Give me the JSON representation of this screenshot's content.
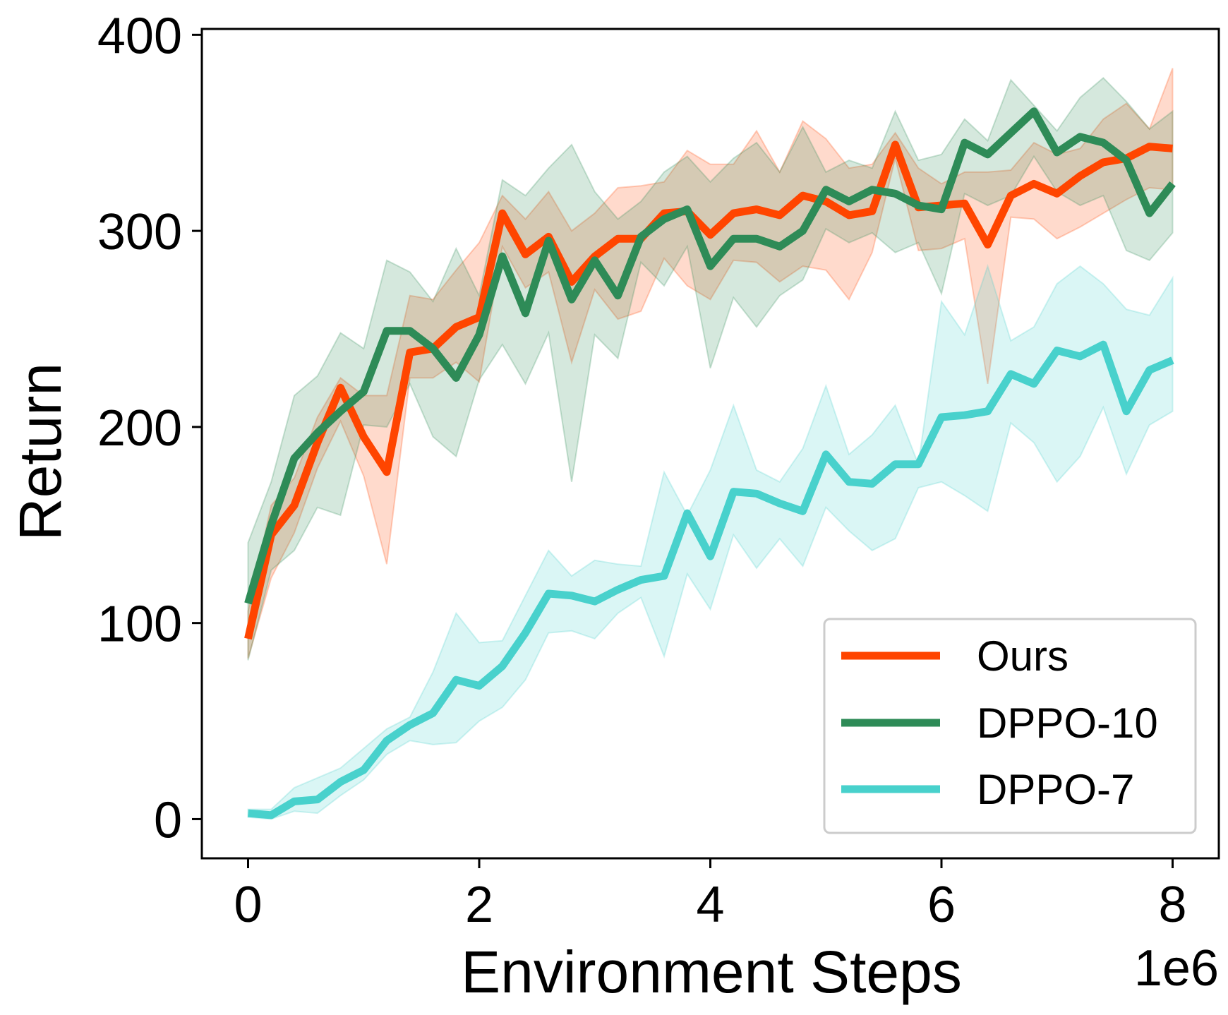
{
  "chart_data": {
    "type": "line",
    "title": "",
    "xlabel": "Environment Steps",
    "ylabel": "Return",
    "x_offset_label": "1e6",
    "xlim": [
      -0.4,
      8.4
    ],
    "ylim": [
      -20,
      403
    ],
    "xticks": [
      0,
      2,
      4,
      6,
      8
    ],
    "xtick_labels": [
      "0",
      "2",
      "4",
      "6",
      "8"
    ],
    "yticks": [
      0,
      100,
      200,
      300,
      400
    ],
    "ytick_labels": [
      "0",
      "100",
      "200",
      "300",
      "400"
    ],
    "grid": false,
    "legend_position": "lower-right",
    "x": [
      0,
      0.2,
      0.4,
      0.6,
      0.8,
      1.0,
      1.2,
      1.4,
      1.6,
      1.8,
      2.0,
      2.2,
      2.4,
      2.6,
      2.8,
      3.0,
      3.2,
      3.4,
      3.6,
      3.8,
      4.0,
      4.2,
      4.4,
      4.6,
      4.8,
      5.0,
      5.2,
      5.4,
      5.6,
      5.8,
      6.0,
      6.2,
      6.4,
      6.6,
      6.8,
      7.0,
      7.2,
      7.4,
      7.6,
      7.8,
      8.0
    ],
    "series": [
      {
        "name": "Ours",
        "color": "#FF4500",
        "values": [
          92,
          145,
          160,
          192,
          220,
          195,
          177,
          238,
          240,
          251,
          256,
          309,
          288,
          297,
          274,
          287,
          296,
          296,
          309,
          310,
          298,
          309,
          311,
          308,
          318,
          315,
          308,
          310,
          344,
          312,
          313,
          314,
          293,
          318,
          324,
          319,
          328,
          335,
          337,
          343,
          342
        ],
        "upper": [
          106,
          160,
          174,
          205,
          225,
          216,
          216,
          267,
          265,
          280,
          294,
          318,
          306,
          320,
          300,
          309,
          322,
          323,
          325,
          341,
          334,
          334,
          351,
          330,
          356,
          347,
          332,
          334,
          350,
          332,
          324,
          330,
          330,
          331,
          345,
          339,
          342,
          357,
          365,
          352,
          383
        ],
        "lower": [
          82,
          123,
          146,
          179,
          203,
          175,
          130,
          225,
          225,
          233,
          223,
          292,
          271,
          279,
          233,
          270,
          255,
          259,
          286,
          272,
          265,
          285,
          284,
          274,
          282,
          280,
          265,
          289,
          337,
          290,
          291,
          296,
          222,
          307,
          306,
          296,
          302,
          309,
          316,
          322,
          321
        ]
      },
      {
        "name": "DPPO-10",
        "color": "#2E8B57",
        "values": [
          110,
          150,
          184,
          197,
          208,
          218,
          249,
          249,
          240,
          225,
          247,
          287,
          258,
          295,
          265,
          285,
          267,
          297,
          306,
          311,
          282,
          296,
          296,
          292,
          300,
          321,
          315,
          321,
          319,
          313,
          311,
          345,
          339,
          350,
          361,
          340,
          348,
          345,
          336,
          309,
          324
        ],
        "upper": [
          141,
          172,
          216,
          226,
          248,
          240,
          285,
          279,
          264,
          291,
          267,
          326,
          318,
          332,
          344,
          320,
          306,
          315,
          330,
          338,
          325,
          337,
          345,
          330,
          353,
          330,
          336,
          332,
          361,
          336,
          339,
          357,
          346,
          377,
          364,
          351,
          368,
          378,
          366,
          352,
          361
        ],
        "lower": [
          81,
          127,
          137,
          159,
          155,
          201,
          200,
          222,
          195,
          185,
          224,
          242,
          222,
          248,
          172,
          247,
          235,
          284,
          272,
          292,
          230,
          266,
          251,
          267,
          275,
          301,
          294,
          299,
          289,
          294,
          268,
          319,
          313,
          318,
          338,
          320,
          313,
          318,
          290,
          285,
          299
        ]
      },
      {
        "name": "DPPO-7",
        "color": "#48D1CC",
        "values": [
          3,
          2,
          9,
          10,
          19,
          25,
          40,
          48,
          54,
          71,
          68,
          78,
          95,
          115,
          114,
          111,
          117,
          122,
          124,
          156,
          134,
          167,
          166,
          161,
          157,
          186,
          172,
          171,
          181,
          181,
          205,
          206,
          208,
          227,
          222,
          239,
          236,
          242,
          208,
          229,
          234
        ],
        "upper": [
          5,
          5,
          16,
          21,
          26,
          36,
          46,
          52,
          75,
          105,
          90,
          91,
          114,
          137,
          124,
          132,
          130,
          129,
          177,
          155,
          178,
          211,
          178,
          172,
          189,
          221,
          186,
          196,
          211,
          181,
          264,
          247,
          282,
          244,
          251,
          273,
          282,
          273,
          260,
          257,
          276
        ],
        "lower": [
          1,
          0,
          4,
          3,
          12,
          20,
          33,
          40,
          38,
          39,
          50,
          57,
          71,
          95,
          96,
          92,
          105,
          113,
          83,
          125,
          107,
          145,
          128,
          143,
          129,
          159,
          147,
          137,
          143,
          169,
          172,
          165,
          157,
          202,
          192,
          172,
          185,
          210,
          176,
          201,
          208
        ]
      }
    ]
  }
}
